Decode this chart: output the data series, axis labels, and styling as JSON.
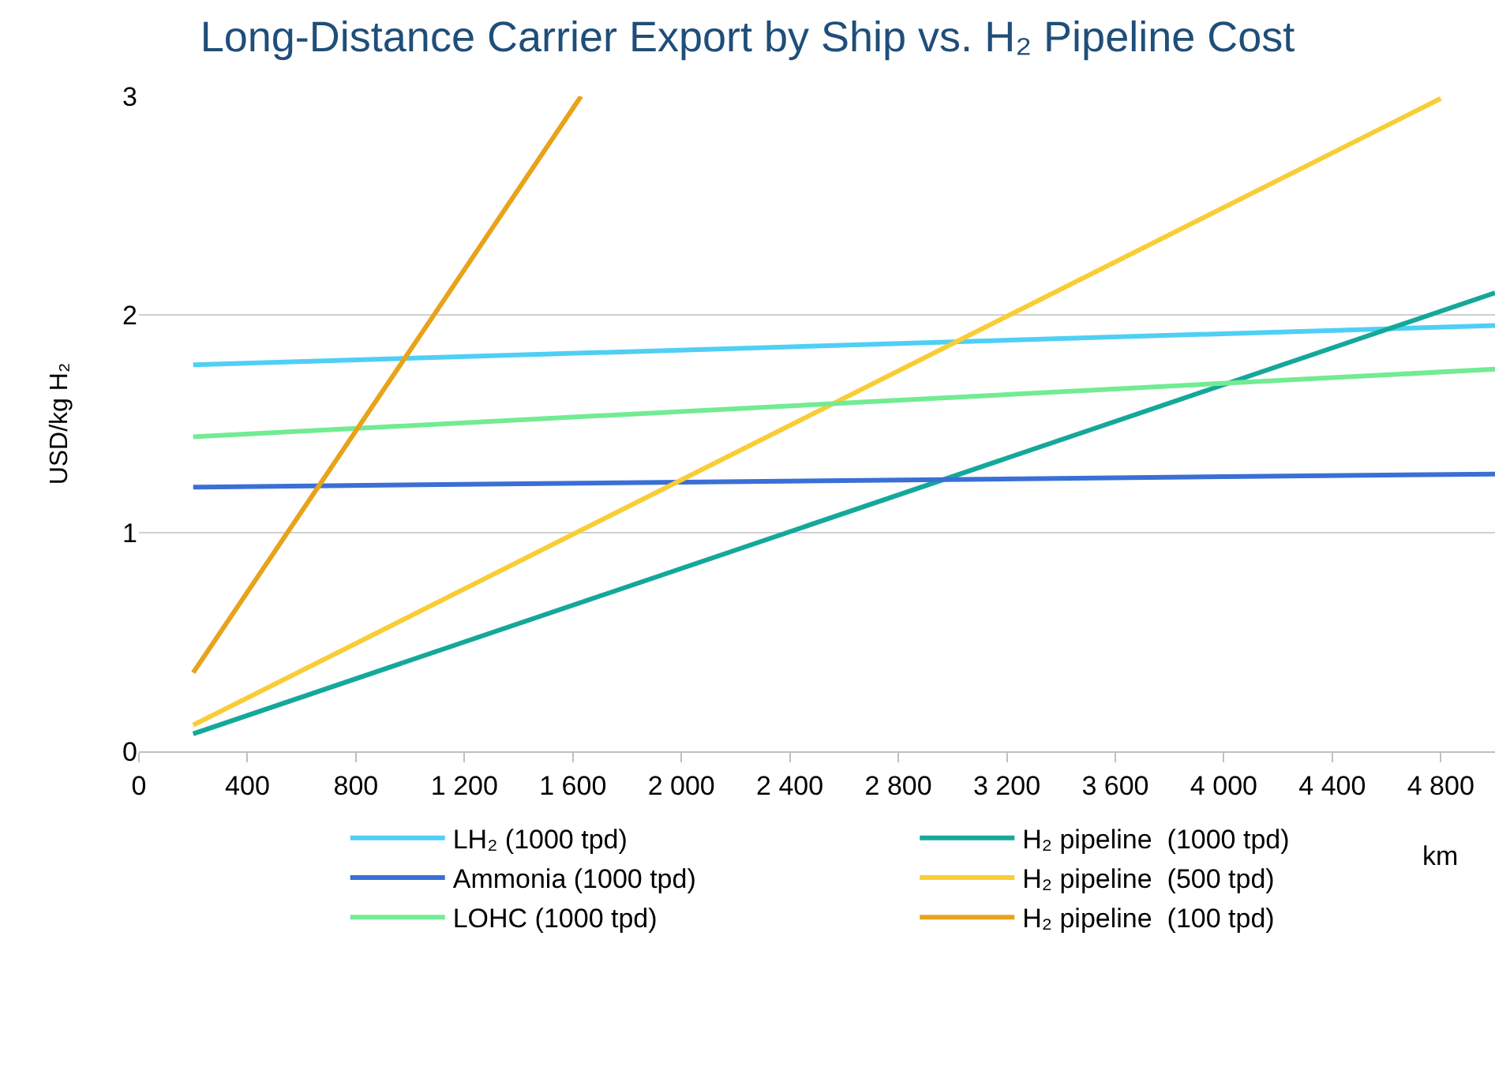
{
  "chart_data": {
    "type": "line",
    "title": "Long-Distance Carrier Export by Ship vs. H₂ Pipeline Cost",
    "xlabel": "km",
    "ylabel": "USD/kg H₂",
    "xlim": [
      0,
      5000
    ],
    "xticks": [
      0,
      400,
      800,
      {
        "value": 1200,
        "label": "1 200"
      },
      {
        "value": 1600,
        "label": "1 600"
      },
      {
        "value": 2000,
        "label": "2 000"
      },
      {
        "value": 2400,
        "label": "2 400"
      },
      {
        "value": 2800,
        "label": "2 800"
      },
      {
        "value": 3200,
        "label": "3 200"
      },
      {
        "value": 3600,
        "label": "3 600"
      },
      {
        "value": 4000,
        "label": "4 000"
      },
      {
        "value": 4400,
        "label": "4 400"
      },
      {
        "value": 4800,
        "label": "4 800"
      }
    ],
    "ylim": [
      0,
      3
    ],
    "yticks": [
      0,
      1,
      2,
      3
    ],
    "grid": "y",
    "legend": "bottom",
    "marker": "none",
    "line_style": "solid",
    "series": [
      {
        "name": "LH₂ (1000 tpd)",
        "color": "#4fcff5",
        "x": [
          200,
          5000
        ],
        "values": [
          1.77,
          1.95
        ]
      },
      {
        "name": "H₂ pipeline  (1000 tpd)",
        "color": "#14a89a",
        "x": [
          200,
          5000
        ],
        "values": [
          0.08,
          2.1
        ]
      },
      {
        "name": "Ammonia (1000 tpd)",
        "color": "#3a6fd6",
        "x": [
          200,
          5000
        ],
        "values": [
          1.21,
          1.27
        ]
      },
      {
        "name": "H₂ pipeline  (500 tpd)",
        "color": "#f8cd35",
        "x": [
          200,
          4800
        ],
        "values": [
          0.12,
          2.99
        ]
      },
      {
        "name": "LOHC (1000 tpd)",
        "color": "#72eb93",
        "x": [
          200,
          5000
        ],
        "values": [
          1.44,
          1.75
        ]
      },
      {
        "name": "H₂ pipeline  (100 tpd)",
        "color": "#e8a31a",
        "x": [
          200,
          1630
        ],
        "values": [
          0.36,
          3.0
        ]
      }
    ]
  }
}
